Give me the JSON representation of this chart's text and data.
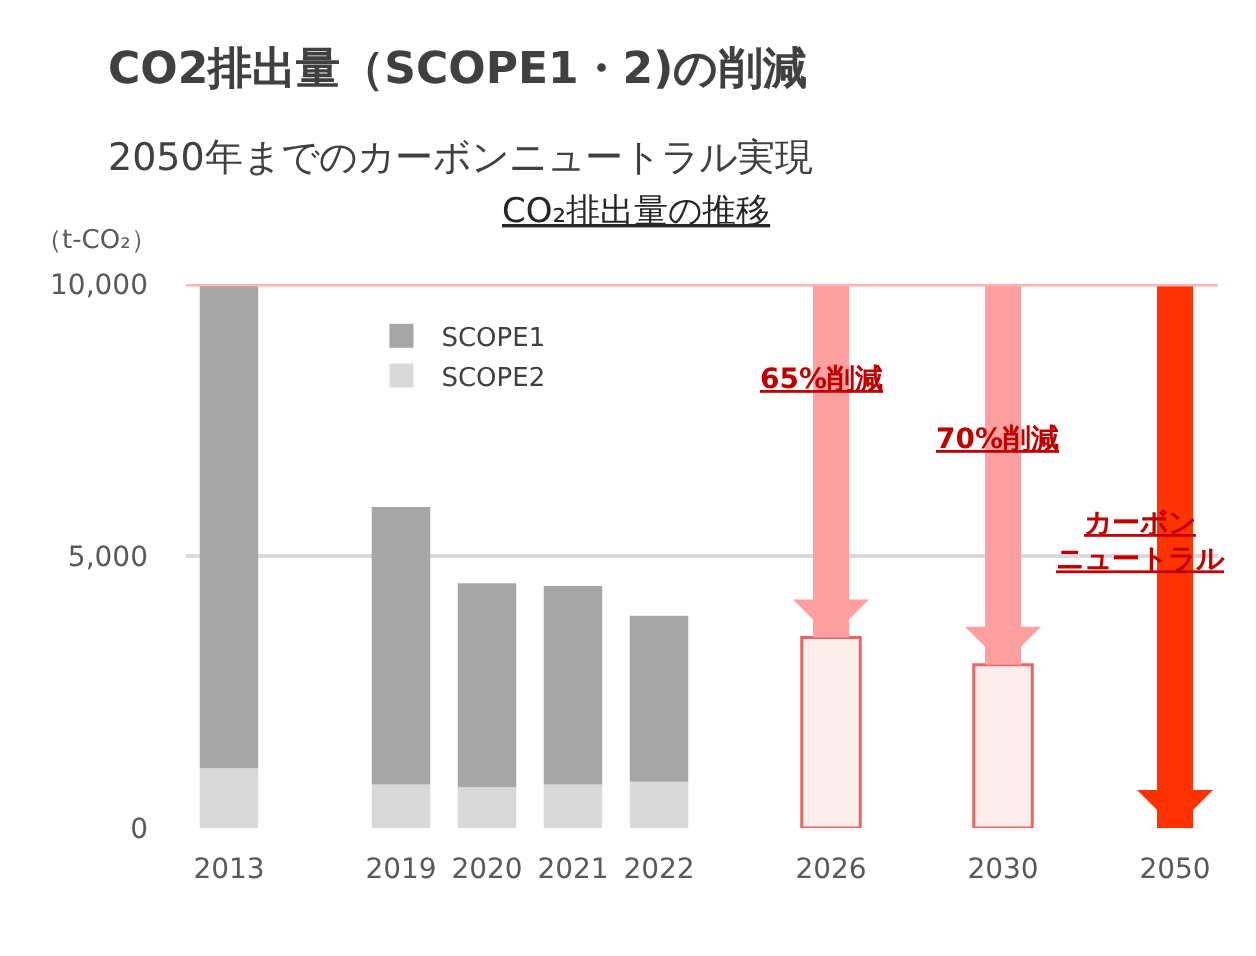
{
  "chart_data": {
    "type": "bar",
    "title": "CO2排出量（SCOPE1・2)の削減",
    "subtitle": "2050年までのカーボンニュートラル実現",
    "ylabel": "（t-CO₂）",
    "categories": [
      "2013",
      null,
      "2019",
      "2020",
      "2021",
      "2022",
      null,
      "2026",
      null,
      "2030",
      null,
      "2050"
    ],
    "series": [
      {
        "name": "SCOPE2",
        "color": "#d9d9d9",
        "values": [
          1100,
          null,
          800,
          750,
          800,
          850,
          null,
          null,
          null,
          null,
          null,
          null
        ]
      },
      {
        "name": "SCOPE1",
        "color": "#a6a6a6",
        "values": [
          8900,
          null,
          5100,
          3750,
          3650,
          3050,
          null,
          null,
          null,
          null,
          null,
          null
        ]
      },
      {
        "color": "#fdeeee",
        "values": [
          null,
          null,
          null,
          null,
          null,
          null,
          null,
          3500,
          null,
          3000,
          null,
          null
        ]
      },
      {
        "colors": [
          null,
          null,
          null,
          null,
          null,
          null,
          null,
          "#ff9f9f",
          null,
          "#ff9f9f",
          null,
          "#ff3300"
        ],
        "base": [
          null,
          null,
          null,
          null,
          null,
          null,
          null,
          10000,
          null,
          10000,
          null,
          10000
        ],
        "values": [
          null,
          null,
          null,
          null,
          null,
          null,
          null,
          -6500,
          null,
          -7000,
          null,
          -10000
        ]
      }
    ],
    "stacked": true,
    "ylim": [
      0,
      10000
    ],
    "yticks": [
      0,
      {
        "value": 5000,
        "label": "5,000"
      },
      {
        "value": 10000,
        "label": "10,000"
      }
    ],
    "grid": "y",
    "legend": "top left",
    "ref_lines": [
      {
        "axis": "y",
        "value": 10000,
        "color": "#ffb3b3"
      }
    ],
    "annotations": [
      "CO₂排出量の推移",
      "65%削減",
      "70%削減",
      "カーボンニュートラル"
    ]
  }
}
